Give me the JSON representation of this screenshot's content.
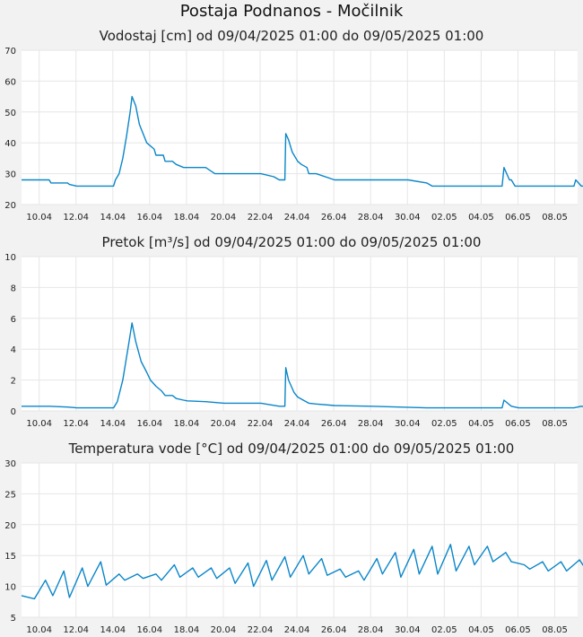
{
  "title": "Postaja Podnanos - Močilnik",
  "colors": {
    "line": "#0a86c8",
    "plot_bg": "#ffffff",
    "grid": "#e6e6e6",
    "page_bg": "#f2f2f2"
  },
  "x_ticks": [
    "10.04",
    "12.04",
    "14.04",
    "16.04",
    "18.04",
    "20.04",
    "22.04",
    "24.04",
    "26.04",
    "28.04",
    "30.04",
    "02.05",
    "04.05",
    "06.05",
    "08.05"
  ],
  "chart_data": [
    {
      "type": "line",
      "title": "Vodostaj [cm] od 09/04/2025 01:00 do 09/05/2025 01:00",
      "x_range_days": [
        "09.04 01:00",
        "09.05 01:00"
      ],
      "ylim": [
        20,
        70
      ],
      "y_ticks": [
        20,
        30,
        40,
        50,
        60,
        70
      ],
      "grid": true,
      "series": [
        {
          "x": [
            0,
            1.5,
            1.6,
            2.5,
            2.6,
            3.0,
            3.2,
            4.0,
            4.5,
            5.0,
            5.1,
            5.3,
            5.5,
            5.7,
            5.9,
            6.0,
            6.2,
            6.4,
            6.6,
            6.8,
            7.2,
            7.3,
            7.7,
            7.8,
            8.2,
            8.4,
            8.8,
            9.0,
            10.0,
            10.5,
            11.0,
            11.2,
            12.0,
            13.0,
            13.7,
            14.0,
            14.3,
            14.35,
            14.5,
            14.7,
            15.0,
            15.2,
            15.5,
            15.6,
            16.0,
            17.0,
            18.0,
            19.0,
            21.0,
            22.0,
            22.3,
            26.1,
            26.2,
            26.5,
            26.6,
            26.8,
            28.0,
            29.0,
            30.0,
            30.1,
            30.4,
            30.5,
            30.6,
            31.0
          ],
          "y": [
            28,
            28,
            27,
            27,
            26.5,
            26,
            26,
            26,
            26,
            26,
            28,
            30,
            35,
            42,
            50,
            55,
            52,
            46,
            43,
            40,
            38,
            36,
            36,
            34,
            34,
            33,
            32,
            32,
            32,
            30,
            30,
            30,
            30,
            30,
            29,
            28,
            28,
            43,
            41,
            37,
            34,
            33,
            32,
            30,
            30,
            28,
            28,
            28,
            28,
            27,
            26,
            26,
            32,
            28,
            28,
            26,
            26,
            26,
            26,
            28,
            26,
            26,
            26,
            26
          ]
        }
      ]
    },
    {
      "type": "line",
      "title": "Pretok [m³/s] od 09/04/2025 01:00 do 09/05/2025 01:00",
      "x_range_days": [
        "09.04 01:00",
        "09.05 01:00"
      ],
      "ylim": [
        0,
        10
      ],
      "y_ticks": [
        0,
        2,
        4,
        6,
        8,
        10
      ],
      "grid": true,
      "series": [
        {
          "x": [
            0,
            1.5,
            2.5,
            3.0,
            5.0,
            5.2,
            5.5,
            5.8,
            6.0,
            6.2,
            6.5,
            6.8,
            7.0,
            7.3,
            7.6,
            7.8,
            8.2,
            8.4,
            8.8,
            9.0,
            10.0,
            11.0,
            12.0,
            13.0,
            14.0,
            14.3,
            14.35,
            14.5,
            14.8,
            15.0,
            15.3,
            15.6,
            16.0,
            17.0,
            19.0,
            22.0,
            26.1,
            26.2,
            26.6,
            27.0,
            30.0,
            30.4,
            31.0
          ],
          "y": [
            0.3,
            0.3,
            0.25,
            0.2,
            0.2,
            0.6,
            2.0,
            4.2,
            5.7,
            4.5,
            3.2,
            2.5,
            2.0,
            1.6,
            1.3,
            1.0,
            1.0,
            0.8,
            0.7,
            0.65,
            0.6,
            0.5,
            0.5,
            0.5,
            0.3,
            0.3,
            2.8,
            2.0,
            1.2,
            0.9,
            0.7,
            0.5,
            0.45,
            0.35,
            0.3,
            0.2,
            0.2,
            0.7,
            0.3,
            0.2,
            0.2,
            0.3,
            0.2
          ]
        }
      ]
    },
    {
      "type": "line",
      "title": "Temperatura vode [°C] od 09/04/2025 01:00 do 09/05/2025 01:00",
      "x_range_days": [
        "09.04 01:00",
        "09.05 01:00"
      ],
      "ylim": [
        5,
        30
      ],
      "y_ticks": [
        5,
        10,
        15,
        20,
        25,
        30
      ],
      "grid": true,
      "series": [
        {
          "x": [
            0,
            0.7,
            1.3,
            1.7,
            2.3,
            2.6,
            3.3,
            3.6,
            4.3,
            4.6,
            5.3,
            5.6,
            6.3,
            6.6,
            7.3,
            7.6,
            8.3,
            8.6,
            9.3,
            9.6,
            10.3,
            10.6,
            11.3,
            11.6,
            12.3,
            12.6,
            13.3,
            13.6,
            14.3,
            14.6,
            15.3,
            15.6,
            16.3,
            16.6,
            17.3,
            17.6,
            18.3,
            18.6,
            19.3,
            19.6,
            20.3,
            20.6,
            21.3,
            21.6,
            22.3,
            22.6,
            23.3,
            23.6,
            24.3,
            24.6,
            25.3,
            25.6,
            26.3,
            26.6,
            27.3,
            27.6,
            28.3,
            28.6,
            29.3,
            29.6,
            30.3,
            30.6,
            31.0
          ],
          "y": [
            8.5,
            8.0,
            11.0,
            8.5,
            12.5,
            8.2,
            13.0,
            10.0,
            14.0,
            10.2,
            12.0,
            11.0,
            12.0,
            11.3,
            12.0,
            11.0,
            13.5,
            11.5,
            13.0,
            11.5,
            13.0,
            11.3,
            13.0,
            10.5,
            13.8,
            10.0,
            14.2,
            11.0,
            14.8,
            11.5,
            15.0,
            12.0,
            14.5,
            11.8,
            12.8,
            11.5,
            12.5,
            11.0,
            14.5,
            12.0,
            15.5,
            11.5,
            16.0,
            12.0,
            16.5,
            12.0,
            16.8,
            12.5,
            16.5,
            13.5,
            16.5,
            14.0,
            15.5,
            14.0,
            13.5,
            12.8,
            14.0,
            12.5,
            14.0,
            12.5,
            14.3,
            13.0,
            12.2
          ]
        }
      ]
    }
  ]
}
